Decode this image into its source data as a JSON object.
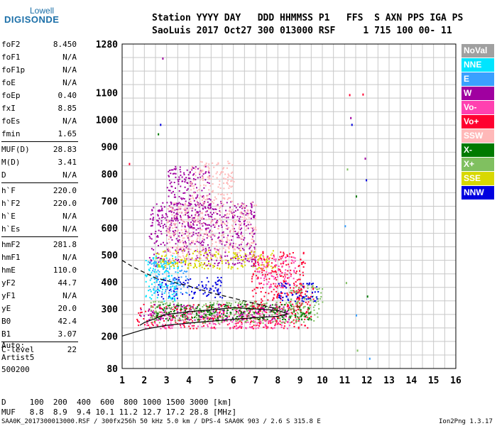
{
  "logo": {
    "top": "Lowell",
    "main": "DIGISONDE"
  },
  "header": {
    "line1": "Station YYYY DAY   DDD HHMMSS P1   FFS  S AXN PPS IGA PS",
    "line2": "SaoLuis 2017 Oct27 300 013000 RSF     1 715 100 00- 11"
  },
  "params": [
    {
      "k": "foF2",
      "v": "8.450"
    },
    {
      "k": "foF1",
      "v": "N/A"
    },
    {
      "k": "foF1p",
      "v": "N/A"
    },
    {
      "k": "foE",
      "v": "N/A"
    },
    {
      "k": "foEp",
      "v": "0.40"
    },
    {
      "k": "fxI",
      "v": "8.85"
    },
    {
      "k": "foEs",
      "v": "N/A"
    },
    {
      "k": "fmin",
      "v": "1.65"
    },
    {
      "k": "MUF(D)",
      "v": "28.83"
    },
    {
      "k": "M(D)",
      "v": "3.41"
    },
    {
      "k": "D",
      "v": "N/A"
    },
    {
      "k": "h`F",
      "v": "220.0"
    },
    {
      "k": "h`F2",
      "v": "220.0"
    },
    {
      "k": "h`E",
      "v": "N/A"
    },
    {
      "k": "h`Es",
      "v": "N/A"
    },
    {
      "k": "hmF2",
      "v": "281.8"
    },
    {
      "k": "hmF1",
      "v": "N/A"
    },
    {
      "k": "hmE",
      "v": "110.0"
    },
    {
      "k": "yF2",
      "v": "44.7"
    },
    {
      "k": "yF1",
      "v": "N/A"
    },
    {
      "k": "yE",
      "v": "20.0"
    },
    {
      "k": "B0",
      "v": "42.4"
    },
    {
      "k": "B1",
      "v": "3.07"
    },
    {
      "k": "C-level",
      "v": "22"
    }
  ],
  "autoscale": {
    "line1": "Auto:",
    "line2": "Artist5",
    "line3": "500200"
  },
  "legend": [
    {
      "label": "NoVal",
      "color": "#a0a0a0"
    },
    {
      "label": "NNE",
      "color": "#00e5ff"
    },
    {
      "label": "E",
      "color": "#3aa0ff"
    },
    {
      "label": "W",
      "color": "#a000a0"
    },
    {
      "label": "Vo-",
      "color": "#ff40b0"
    },
    {
      "label": "Vo+",
      "color": "#ff0030"
    },
    {
      "label": "SSW",
      "color": "#ffb8b8"
    },
    {
      "label": "X-",
      "color": "#007a00"
    },
    {
      "label": "X+",
      "color": "#80c060"
    },
    {
      "label": "SSE",
      "color": "#d8d800"
    },
    {
      "label": "NNW",
      "color": "#0000e0"
    }
  ],
  "footer": {
    "line1": "D     100  200  400  600  800 1000 1500 3000 [km]",
    "line2": "MUF   8.8  8.9  9.4 10.1 11.2 12.7 17.2 28.8 [MHz]",
    "file": "SAA0K_2017300013000.RSF / 300fx256h 50 kHz 5.0 km / DPS-4 SAA0K 903 / 2.6 S 315.8 E",
    "version": "Ion2Png 1.3.17"
  },
  "chart_data": {
    "type": "scatter",
    "title": "",
    "xlabel": "",
    "ylabel": "",
    "xlim": [
      1,
      16
    ],
    "ylim": [
      80,
      1280
    ],
    "x_ticks": [
      1,
      2,
      3,
      4,
      5,
      6,
      7,
      8,
      9,
      10,
      11,
      12,
      13,
      14,
      15,
      16
    ],
    "y_ticks": [
      80,
      200,
      300,
      400,
      500,
      600,
      700,
      800,
      900,
      1000,
      1100,
      1280
    ],
    "grid": true,
    "legend_position": "right",
    "series": [
      {
        "name": "Vo+",
        "color": "#ff0030",
        "regions": [
          [
            1.6,
            9.5,
            230,
            320
          ],
          [
            6.8,
            9.2,
            300,
            520
          ],
          [
            8.8,
            9.6,
            320,
            400
          ]
        ]
      },
      {
        "name": "Vo-",
        "color": "#ff40b0",
        "regions": [
          [
            2.0,
            8.5,
            230,
            300
          ],
          [
            7.0,
            8.8,
            380,
            500
          ]
        ]
      },
      {
        "name": "W",
        "color": "#a000a0",
        "regions": [
          [
            2.2,
            7.0,
            460,
            700
          ],
          [
            3.0,
            5.0,
            600,
            830
          ],
          [
            1.8,
            8.5,
            260,
            320
          ]
        ]
      },
      {
        "name": "SSW",
        "color": "#ffb8b8",
        "regions": [
          [
            3.0,
            7.0,
            480,
            700
          ],
          [
            4.0,
            6.0,
            700,
            850
          ]
        ]
      },
      {
        "name": "X+",
        "color": "#80c060",
        "regions": [
          [
            2.2,
            9.9,
            250,
            330
          ],
          [
            8.5,
            10.0,
            320,
            390
          ]
        ]
      },
      {
        "name": "X-",
        "color": "#007a00",
        "regions": [
          [
            2.5,
            9.5,
            260,
            320
          ]
        ]
      },
      {
        "name": "NNW",
        "color": "#0000e0",
        "regions": [
          [
            2.5,
            5.5,
            340,
            420
          ],
          [
            8.0,
            9.8,
            330,
            400
          ]
        ]
      },
      {
        "name": "E",
        "color": "#3aa0ff",
        "regions": [
          [
            2.2,
            4.0,
            360,
            480
          ]
        ]
      },
      {
        "name": "NNE",
        "color": "#00e5ff",
        "regions": [
          [
            2.0,
            3.5,
            330,
            500
          ]
        ]
      },
      {
        "name": "SSE",
        "color": "#d8d800",
        "regions": [
          [
            2.5,
            8.0,
            450,
            520
          ]
        ]
      }
    ],
    "scattered_points": [
      [
        11.2,
        1095
      ],
      [
        11.25,
        1010
      ],
      [
        11.3,
        985
      ],
      [
        11.5,
        720
      ],
      [
        11.5,
        280
      ],
      [
        11.55,
        150
      ],
      [
        11.8,
        1097
      ],
      [
        11.9,
        860
      ],
      [
        11.95,
        780
      ],
      [
        12.0,
        350
      ],
      [
        12.1,
        120
      ],
      [
        11.1,
        820
      ],
      [
        1.3,
        840
      ],
      [
        2.8,
        1230
      ],
      [
        2.7,
        985
      ],
      [
        2.6,
        950
      ],
      [
        11.0,
        610
      ],
      [
        11.05,
        400
      ]
    ],
    "profile_solid": [
      [
        1.0,
        200
      ],
      [
        2.0,
        225
      ],
      [
        3.0,
        240
      ],
      [
        4.0,
        248
      ],
      [
        5.0,
        255
      ],
      [
        6.0,
        262
      ],
      [
        7.0,
        268
      ],
      [
        8.0,
        273
      ],
      [
        8.45,
        282
      ],
      [
        8.0,
        295
      ],
      [
        7.0,
        300
      ],
      [
        6.0,
        305
      ],
      [
        5.0,
        297
      ],
      [
        4.0,
        290
      ],
      [
        3.0,
        280
      ],
      [
        2.0,
        250
      ],
      [
        1.8,
        240
      ]
    ],
    "profile_dashed": [
      [
        1.0,
        480
      ],
      [
        1.5,
        455
      ],
      [
        2.0,
        435
      ],
      [
        2.5,
        415
      ],
      [
        3.0,
        405
      ],
      [
        4.0,
        385
      ],
      [
        5.0,
        360
      ],
      [
        6.0,
        340
      ],
      [
        7.0,
        320
      ],
      [
        8.0,
        300
      ]
    ]
  }
}
